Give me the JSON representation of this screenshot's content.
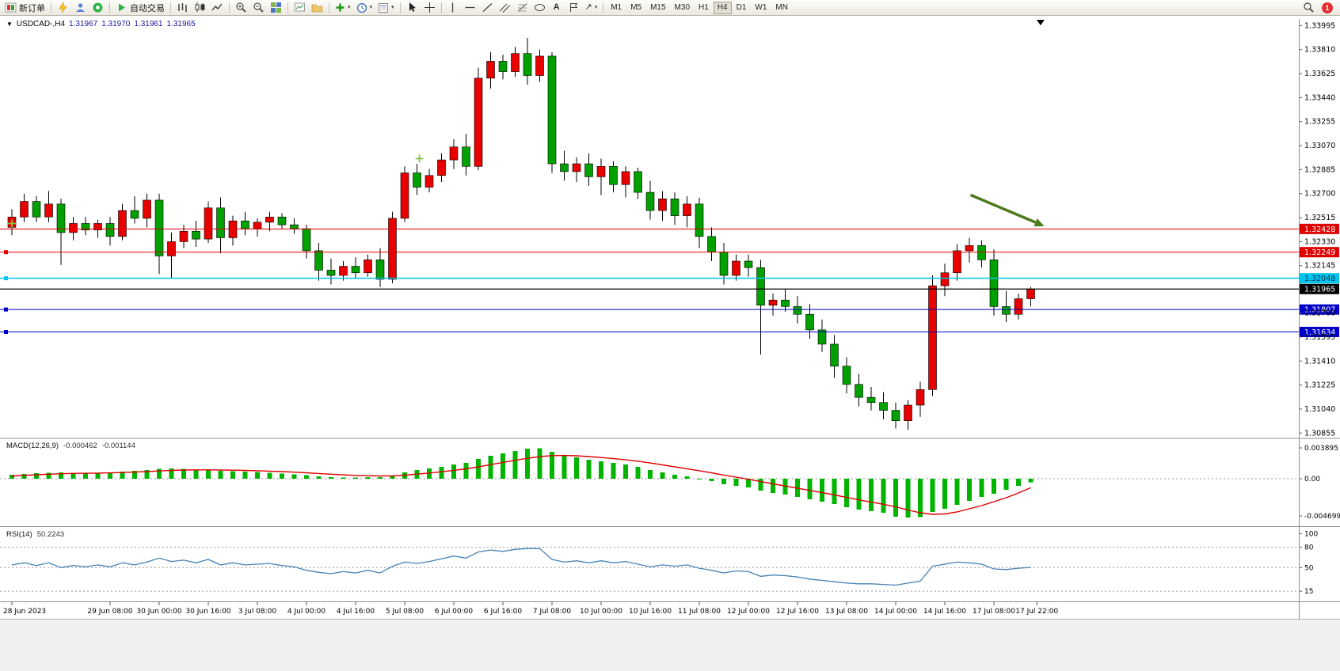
{
  "toolbar": {
    "new_order_label": "新订单",
    "auto_trading_label": "自动交易",
    "text_tool_label": "A",
    "arrows_tool_glyph": "↗",
    "caret_glyph": "▾",
    "timeframes": [
      "M1",
      "M5",
      "M15",
      "M30",
      "H1",
      "H4",
      "D1",
      "W1",
      "MN"
    ],
    "active_timeframe": "H4",
    "notification_badge": "1"
  },
  "chart_header": {
    "collapse_glyph": "▼",
    "symbol_period": "USDCAD-,H4",
    "open": "1.31967",
    "high": "1.31970",
    "low": "1.31961",
    "close": "1.31965"
  },
  "chart_data": {
    "type": "candlestick",
    "symbol": "USDCAD-",
    "timeframe": "H4",
    "up_color": "#e80000",
    "down_color": "#00a000",
    "marker_color": "#86c440",
    "shift_marker_bar": 83.8,
    "price_axis": {
      "max": 1.3404,
      "min": 1.3082,
      "tick_labels": [
        "1.33995",
        "1.33810",
        "1.33625",
        "1.33440",
        "1.33255",
        "1.33070",
        "1.32885",
        "1.32700",
        "1.32515",
        "1.32330",
        "1.32145",
        "1.31780",
        "1.31595",
        "1.31410",
        "1.31225",
        "1.31040",
        "1.30855"
      ]
    },
    "bid_price": "1.31965",
    "hlines": [
      {
        "price": 1.32428,
        "color": "#e00000",
        "label": "1.32428",
        "text_color": "#ffffff",
        "width": 1
      },
      {
        "price": 1.32249,
        "color": "#e00000",
        "label": "1.32249",
        "text_color": "#ffffff",
        "width": 1,
        "handles": true
      },
      {
        "price": 1.32048,
        "color": "#00c4f0",
        "label": "1.32048",
        "text_color": "#00333d",
        "width": 1.5,
        "handles": true
      },
      {
        "price": 1.31965,
        "color": "#000000",
        "label": "1.31965",
        "text_color": "#ffffff",
        "width": 1.3
      },
      {
        "price": 1.31807,
        "color": "#0000c8",
        "label": "1.31807",
        "text_color": "#ffffff",
        "width": 1,
        "handles": true
      },
      {
        "price": 1.31634,
        "color": "#0000c8",
        "label": "1.31634",
        "text_color": "#ffffff",
        "width": 1,
        "handles": true
      }
    ],
    "arrow": {
      "from_bar": 78.1,
      "from_price": 1.3269,
      "to_bar": 84.1,
      "to_price": 1.3245,
      "color": "#4e7a1e"
    },
    "markers": [
      {
        "bar": 0,
        "price": 1.3247
      },
      {
        "bar": 33.2,
        "price": 1.3297
      }
    ],
    "time_labels": [
      {
        "bar": 0,
        "text": "28 Jun 2023"
      },
      {
        "bar": 8,
        "text": "29 Jun 08:00"
      },
      {
        "bar": 12,
        "text": "30 Jun 00:00"
      },
      {
        "bar": 16,
        "text": "30 Jun 16:00"
      },
      {
        "bar": 20,
        "text": "3 Jul 08:00"
      },
      {
        "bar": 24,
        "text": "4 Jul 00:00"
      },
      {
        "bar": 28,
        "text": "4 Jul 16:00"
      },
      {
        "bar": 32,
        "text": "5 Jul 08:00"
      },
      {
        "bar": 36,
        "text": "6 Jul 00:00"
      },
      {
        "bar": 40,
        "text": "6 Jul 16:00"
      },
      {
        "bar": 44,
        "text": "7 Jul 08:00"
      },
      {
        "bar": 48,
        "text": "10 Jul 00:00"
      },
      {
        "bar": 52,
        "text": "10 Jul 16:00"
      },
      {
        "bar": 56,
        "text": "11 Jul 08:00"
      },
      {
        "bar": 60,
        "text": "12 Jul 00:00"
      },
      {
        "bar": 64,
        "text": "12 Jul 16:00"
      },
      {
        "bar": 68,
        "text": "13 Jul 08:00"
      },
      {
        "bar": 72,
        "text": "14 Jul 00:00"
      },
      {
        "bar": 76,
        "text": "14 Jul 16:00"
      },
      {
        "bar": 80,
        "text": "17 Jul 08:00"
      },
      {
        "bar": 83.5,
        "text": "17 Jul 22:00"
      }
    ],
    "candles": [
      [
        1.3244,
        1.3258,
        1.3238,
        1.3252
      ],
      [
        1.3252,
        1.327,
        1.3248,
        1.3264
      ],
      [
        1.3264,
        1.3268,
        1.3248,
        1.3252
      ],
      [
        1.3252,
        1.3272,
        1.3248,
        1.3262
      ],
      [
        1.3262,
        1.3266,
        1.3215,
        1.324
      ],
      [
        1.324,
        1.3252,
        1.3234,
        1.3247
      ],
      [
        1.3247,
        1.3252,
        1.3238,
        1.3242
      ],
      [
        1.3242,
        1.325,
        1.3236,
        1.3247
      ],
      [
        1.3247,
        1.3252,
        1.323,
        1.3237
      ],
      [
        1.3237,
        1.3262,
        1.3234,
        1.3257
      ],
      [
        1.3257,
        1.3268,
        1.3247,
        1.3251
      ],
      [
        1.3251,
        1.327,
        1.3244,
        1.3265
      ],
      [
        1.3265,
        1.327,
        1.3208,
        1.3222
      ],
      [
        1.3222,
        1.324,
        1.3205,
        1.3233
      ],
      [
        1.3233,
        1.3246,
        1.3228,
        1.3241
      ],
      [
        1.3241,
        1.3249,
        1.3229,
        1.3235
      ],
      [
        1.3235,
        1.3264,
        1.3232,
        1.3259
      ],
      [
        1.3259,
        1.3267,
        1.3224,
        1.3236
      ],
      [
        1.3236,
        1.3253,
        1.323,
        1.3249
      ],
      [
        1.3249,
        1.3256,
        1.3238,
        1.3243
      ],
      [
        1.3243,
        1.3251,
        1.3237,
        1.3248
      ],
      [
        1.3248,
        1.3256,
        1.3241,
        1.3252
      ],
      [
        1.3252,
        1.3255,
        1.3243,
        1.3246
      ],
      [
        1.3246,
        1.3251,
        1.3239,
        1.3243
      ],
      [
        1.3243,
        1.3246,
        1.322,
        1.3226
      ],
      [
        1.3226,
        1.3232,
        1.3203,
        1.3211
      ],
      [
        1.3211,
        1.322,
        1.32,
        1.3207
      ],
      [
        1.3207,
        1.3218,
        1.3203,
        1.3214
      ],
      [
        1.3214,
        1.3221,
        1.3205,
        1.3209
      ],
      [
        1.3209,
        1.3223,
        1.3206,
        1.3219
      ],
      [
        1.3219,
        1.3228,
        1.3198,
        1.3204
      ],
      [
        1.3204,
        1.3256,
        1.3201,
        1.3251
      ],
      [
        1.3251,
        1.3291,
        1.3248,
        1.3286
      ],
      [
        1.3286,
        1.3293,
        1.3269,
        1.3275
      ],
      [
        1.3275,
        1.3289,
        1.3271,
        1.3284
      ],
      [
        1.3284,
        1.3301,
        1.3279,
        1.3296
      ],
      [
        1.3296,
        1.3312,
        1.3289,
        1.3306
      ],
      [
        1.3306,
        1.3316,
        1.3284,
        1.3291
      ],
      [
        1.3291,
        1.3367,
        1.3288,
        1.3359
      ],
      [
        1.3359,
        1.3379,
        1.3351,
        1.3372
      ],
      [
        1.3372,
        1.3377,
        1.3358,
        1.3364
      ],
      [
        1.3364,
        1.3383,
        1.336,
        1.3378
      ],
      [
        1.3378,
        1.339,
        1.3354,
        1.3361
      ],
      [
        1.3361,
        1.3381,
        1.3356,
        1.3376
      ],
      [
        1.3376,
        1.3379,
        1.3286,
        1.3293
      ],
      [
        1.3293,
        1.3303,
        1.328,
        1.3287
      ],
      [
        1.3287,
        1.3298,
        1.3279,
        1.3293
      ],
      [
        1.3293,
        1.3301,
        1.3276,
        1.3283
      ],
      [
        1.3283,
        1.3297,
        1.3269,
        1.3291
      ],
      [
        1.3291,
        1.3295,
        1.3271,
        1.3277
      ],
      [
        1.3277,
        1.3291,
        1.3267,
        1.3287
      ],
      [
        1.3287,
        1.329,
        1.3266,
        1.3271
      ],
      [
        1.3271,
        1.328,
        1.325,
        1.3257
      ],
      [
        1.3257,
        1.3272,
        1.3249,
        1.3266
      ],
      [
        1.3266,
        1.3271,
        1.3246,
        1.3253
      ],
      [
        1.3253,
        1.3268,
        1.3244,
        1.3262
      ],
      [
        1.3262,
        1.3267,
        1.3228,
        1.3237
      ],
      [
        1.3237,
        1.3244,
        1.3218,
        1.3225
      ],
      [
        1.3225,
        1.3232,
        1.32,
        1.3207
      ],
      [
        1.3207,
        1.3223,
        1.3203,
        1.3218
      ],
      [
        1.3218,
        1.3223,
        1.3206,
        1.3213
      ],
      [
        1.3213,
        1.3219,
        1.3146,
        1.3184
      ],
      [
        1.3184,
        1.3193,
        1.3176,
        1.3188
      ],
      [
        1.3188,
        1.3196,
        1.3179,
        1.3183
      ],
      [
        1.3183,
        1.3191,
        1.317,
        1.3177
      ],
      [
        1.3177,
        1.3185,
        1.3158,
        1.3165
      ],
      [
        1.3165,
        1.3173,
        1.3148,
        1.3154
      ],
      [
        1.3154,
        1.3161,
        1.3128,
        1.3137
      ],
      [
        1.3137,
        1.3144,
        1.3116,
        1.3123
      ],
      [
        1.3123,
        1.3131,
        1.3106,
        1.3113
      ],
      [
        1.3113,
        1.3121,
        1.3103,
        1.3109
      ],
      [
        1.3109,
        1.3117,
        1.3096,
        1.3103
      ],
      [
        1.3103,
        1.3109,
        1.3089,
        1.3095
      ],
      [
        1.3095,
        1.3111,
        1.3088,
        1.3107
      ],
      [
        1.3107,
        1.3125,
        1.3098,
        1.3119
      ],
      [
        1.3119,
        1.3207,
        1.3114,
        1.3199
      ],
      [
        1.3199,
        1.3216,
        1.3191,
        1.3209
      ],
      [
        1.3209,
        1.3231,
        1.3203,
        1.3226
      ],
      [
        1.3226,
        1.3236,
        1.3217,
        1.323
      ],
      [
        1.323,
        1.3234,
        1.3213,
        1.3219
      ],
      [
        1.3219,
        1.3227,
        1.3176,
        1.3183
      ],
      [
        1.3183,
        1.3195,
        1.3171,
        1.3177
      ],
      [
        1.3177,
        1.3193,
        1.3173,
        1.3189
      ],
      [
        1.3189,
        1.3198,
        1.3183,
        1.31965
      ]
    ],
    "macd": {
      "title": "MACD(12,26,9)",
      "value_main": "-0.000462",
      "value_signal": "-0.001144",
      "hist_color": "#00b400",
      "signal_color": "#e00000",
      "range": [
        -0.006,
        0.005
      ],
      "axis": [
        "0.003895",
        "0.00",
        "-0.004699"
      ],
      "histogram": [
        0.0005,
        0.0006,
        0.0007,
        0.00075,
        0.0008,
        0.00075,
        0.0007,
        0.00075,
        0.0008,
        0.0009,
        0.001,
        0.0011,
        0.00125,
        0.0013,
        0.00125,
        0.00115,
        0.0011,
        0.001,
        0.00095,
        0.0009,
        0.00085,
        0.00075,
        0.00065,
        0.00055,
        0.00045,
        0.0003,
        0.0002,
        0.00015,
        0.00015,
        0.0002,
        0.0002,
        0.0004,
        0.0008,
        0.0011,
        0.0013,
        0.0015,
        0.0018,
        0.002,
        0.0025,
        0.0029,
        0.0032,
        0.0035,
        0.0038,
        0.00385,
        0.0034,
        0.003,
        0.0027,
        0.0024,
        0.0022,
        0.002,
        0.0018,
        0.0015,
        0.0011,
        0.0008,
        0.0005,
        0.0003,
        0.0,
        -0.0003,
        -0.0007,
        -0.0009,
        -0.0011,
        -0.0015,
        -0.0018,
        -0.002,
        -0.0023,
        -0.0026,
        -0.0029,
        -0.0032,
        -0.0036,
        -0.0039,
        -0.0041,
        -0.0043,
        -0.0048,
        -0.0049,
        -0.00485,
        -0.0042,
        -0.0038,
        -0.0033,
        -0.0028,
        -0.0023,
        -0.0019,
        -0.0014,
        -0.0009,
        -0.000462
      ],
      "signal": [
        0.00035,
        0.00042,
        0.0005,
        0.00057,
        0.00063,
        0.00067,
        0.00069,
        0.00071,
        0.00074,
        0.00078,
        0.00084,
        0.0009,
        0.00098,
        0.00105,
        0.0011,
        0.00112,
        0.00112,
        0.0011,
        0.00108,
        0.00105,
        0.00101,
        0.00096,
        0.0009,
        0.00083,
        0.00075,
        0.00066,
        0.00057,
        0.00049,
        0.00042,
        0.00038,
        0.00035,
        0.00036,
        0.00045,
        0.00058,
        0.00072,
        0.00088,
        0.00106,
        0.00125,
        0.0015,
        0.00178,
        0.00206,
        0.00233,
        0.00258,
        0.0028,
        0.00292,
        0.00294,
        0.0029,
        0.0028,
        0.00268,
        0.00254,
        0.00239,
        0.00221,
        0.00199,
        0.00175,
        0.0015,
        0.00126,
        0.00101,
        0.00075,
        0.00046,
        0.00019,
        -7e-05,
        -0.00036,
        -0.00065,
        -0.00092,
        -0.0012,
        -0.00148,
        -0.00176,
        -0.00205,
        -0.00236,
        -0.00267,
        -0.00296,
        -0.00323,
        -0.00355,
        -0.00395,
        -0.0043,
        -0.0045,
        -0.00445,
        -0.0042,
        -0.0038,
        -0.0034,
        -0.0029,
        -0.0024,
        -0.0018,
        -0.001144
      ]
    },
    "rsi": {
      "title": "RSI(14)",
      "value": "50.2243",
      "color": "#4682b4",
      "range": [
        0,
        110
      ],
      "levels": [
        80,
        50,
        15
      ],
      "axis": [
        "100",
        "80",
        "50",
        "15"
      ],
      "series": [
        54,
        57,
        53,
        57,
        50,
        53,
        51,
        54,
        51,
        57,
        54,
        58,
        64,
        59,
        61,
        57,
        62,
        54,
        57,
        54,
        55,
        56,
        53,
        51,
        46,
        43,
        41,
        44,
        42,
        46,
        42,
        52,
        58,
        56,
        59,
        63,
        67,
        64,
        73,
        76,
        74,
        77,
        78,
        78,
        62,
        58,
        60,
        57,
        60,
        57,
        59,
        55,
        51,
        54,
        52,
        54,
        49,
        46,
        42,
        45,
        44,
        37,
        39,
        38,
        36,
        33,
        31,
        29,
        27,
        26,
        26,
        25,
        24,
        27,
        30,
        52,
        55,
        58,
        57,
        55,
        48,
        47,
        49,
        50.22
      ]
    }
  }
}
